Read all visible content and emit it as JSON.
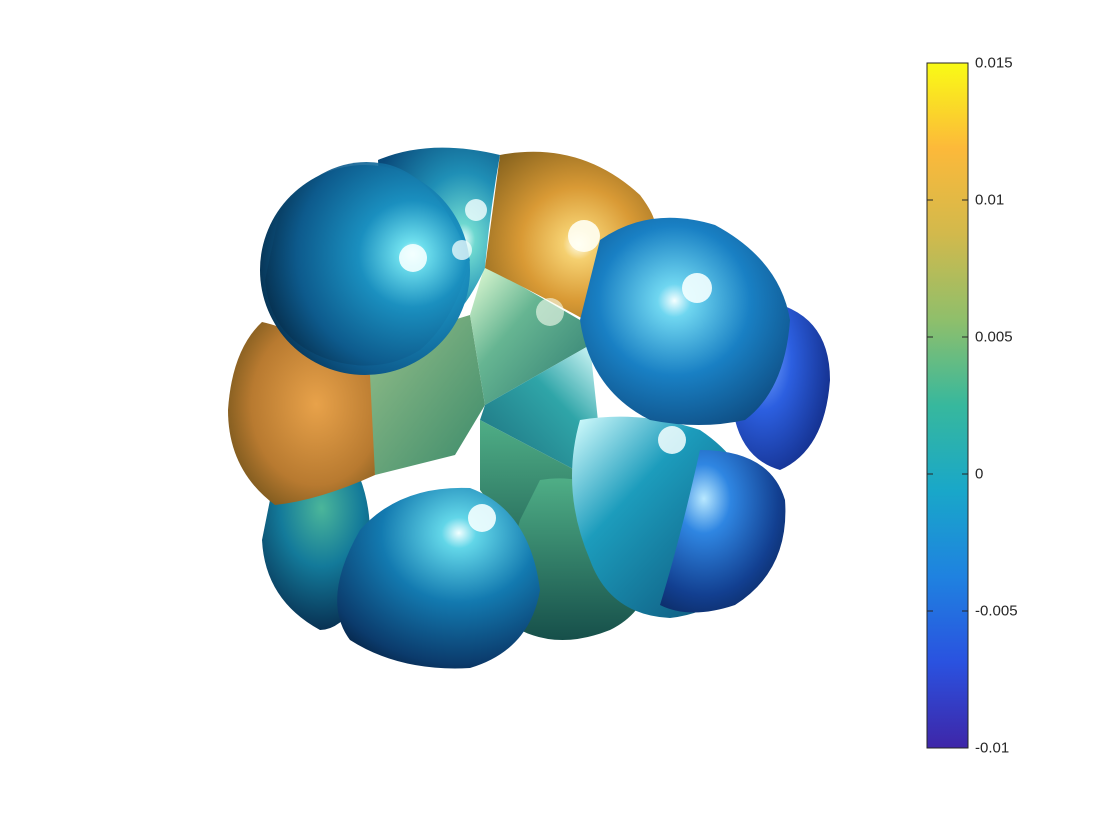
{
  "colorbar": {
    "ticks": [
      {
        "value": 0.015,
        "label": "0.015"
      },
      {
        "value": 0.01,
        "label": "0.01"
      },
      {
        "value": 0.005,
        "label": "0.005"
      },
      {
        "value": 0,
        "label": "0"
      },
      {
        "value": -0.005,
        "label": "-0.005"
      },
      {
        "value": -0.01,
        "label": "-0.01"
      }
    ],
    "range": [
      -0.01,
      0.015
    ],
    "colormap": "parula",
    "colormap_stops": [
      "#3e26a8",
      "#2a52e0",
      "#1f82e0",
      "#19a7c9",
      "#37b89d",
      "#8fbf6b",
      "#d2b94c",
      "#fcb93a",
      "#f9fb15"
    ]
  },
  "surface": {
    "description_colors": {
      "highlight": "#e8ffff",
      "shadow": "#081c3a"
    }
  }
}
